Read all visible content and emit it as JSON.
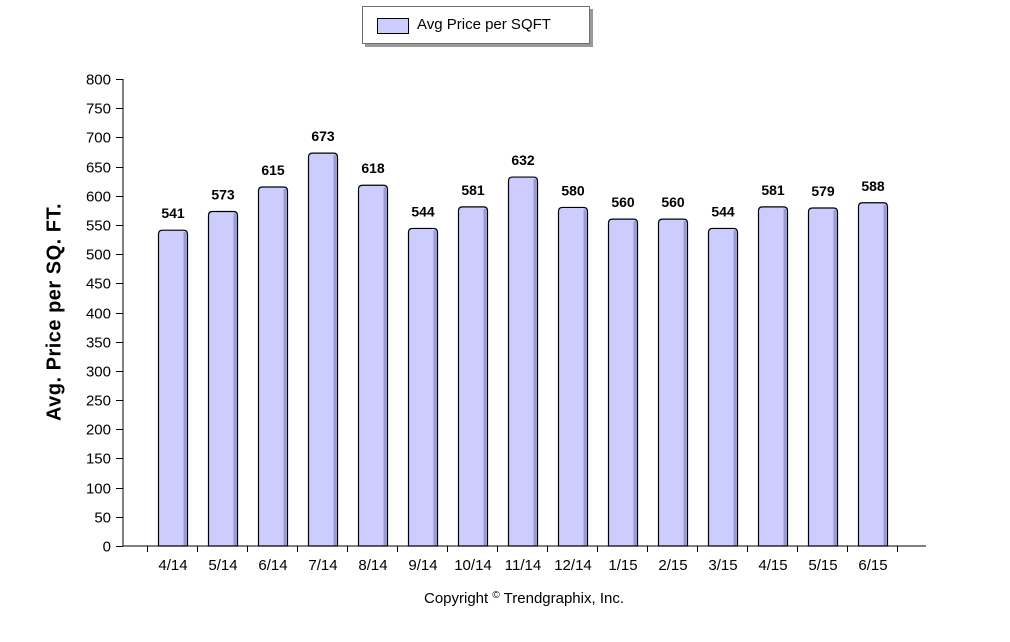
{
  "legend": {
    "label": "Avg Price per SQFT",
    "swatch_color": "#ccccff"
  },
  "ylabel": "Avg. Price per SQ. FT.",
  "copyright": {
    "text": "Copyright",
    "symbol": "©",
    "owner": "Trendgraphix, Inc."
  },
  "chart_data": {
    "type": "bar",
    "categories": [
      "4/14",
      "5/14",
      "6/14",
      "7/14",
      "8/14",
      "9/14",
      "10/14",
      "11/14",
      "12/14",
      "1/15",
      "2/15",
      "3/15",
      "4/15",
      "5/15",
      "6/15"
    ],
    "series": [
      {
        "name": "Avg Price per SQFT",
        "values": [
          541,
          573,
          615,
          673,
          618,
          544,
          581,
          632,
          580,
          560,
          560,
          544,
          581,
          579,
          588
        ]
      }
    ],
    "title": "",
    "xlabel": "",
    "ylabel": "Avg. Price per SQ. FT.",
    "ylim": [
      0,
      800
    ],
    "ytick_step": 50,
    "bar_color": "#ccccff",
    "grid": false,
    "legend_position": "top-center",
    "data_labels": true
  }
}
